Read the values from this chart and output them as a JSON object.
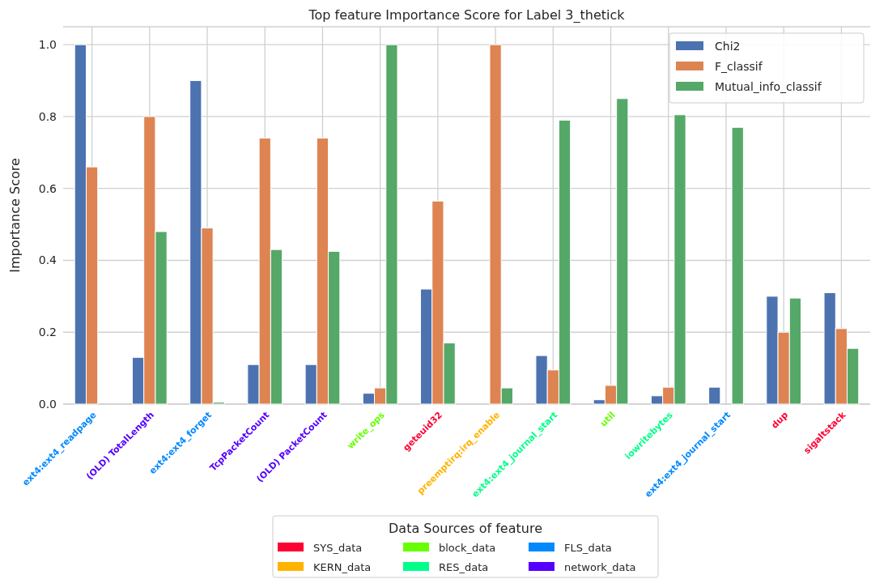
{
  "chart_data": {
    "type": "bar",
    "title": "Top feature Importance Score for Label 3_thetick",
    "ylabel": "Importance Score",
    "categories": [
      "ext4:ext4_readpage",
      "(OLD) TotalLength",
      "ext4:ext4_forget",
      "TcpPacketCount",
      "(OLD) PacketCount",
      "write_ops",
      "geteuid32",
      "preemptirq:irq_enable",
      "ext4:ext4_journal_start",
      "util",
      "iowritebytes",
      "ext4:ext4_journal_start",
      "dup",
      "sigaltstack"
    ],
    "series": [
      {
        "name": "Chi2",
        "color": "#4c72b0",
        "values": [
          1.0,
          0.13,
          0.9,
          0.11,
          0.11,
          0.03,
          0.32,
          0,
          0.135,
          0.012,
          0.023,
          0.047,
          0.3,
          0.31
        ]
      },
      {
        "name": "F_classif",
        "color": "#dd8452",
        "values": [
          0.66,
          0.8,
          0.49,
          0.74,
          0.74,
          0.045,
          0.565,
          1.0,
          0.095,
          0.052,
          0.047,
          0,
          0.2,
          0.21
        ]
      },
      {
        "name": "Mutual_info_classif",
        "color": "#55a868",
        "values": [
          0,
          0.48,
          0.005,
          0.43,
          0.425,
          1.0,
          0.17,
          0.045,
          0.79,
          0.85,
          0.805,
          0.77,
          0.295,
          0.155
        ]
      }
    ],
    "ylim": [
      0,
      1.05
    ],
    "yticks": [
      {
        "value": 0,
        "label": "0.0"
      },
      0.2,
      0.4,
      0.6,
      0.8,
      {
        "value": 1,
        "label": "1.0"
      }
    ],
    "grid": true,
    "legend": "top right",
    "annotations": [
      "Data Sources of feature",
      "SYS_data",
      "KERN_data",
      "block_data",
      "RES_data",
      "FLS_data",
      "network_data"
    ]
  }
}
